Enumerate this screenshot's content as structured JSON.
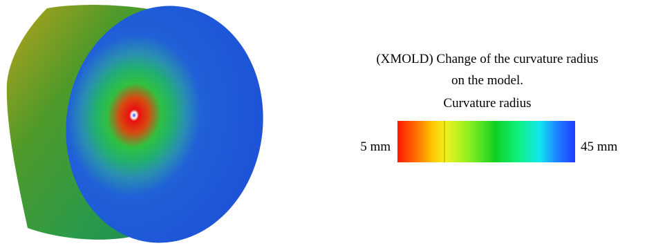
{
  "caption": {
    "lines": [
      "(XMOLD) Change of the curvature radius",
      "on the model."
    ]
  },
  "legend": {
    "title": "Curvature radius",
    "min_label": "5 mm",
    "max_label": "45 mm"
  }
}
